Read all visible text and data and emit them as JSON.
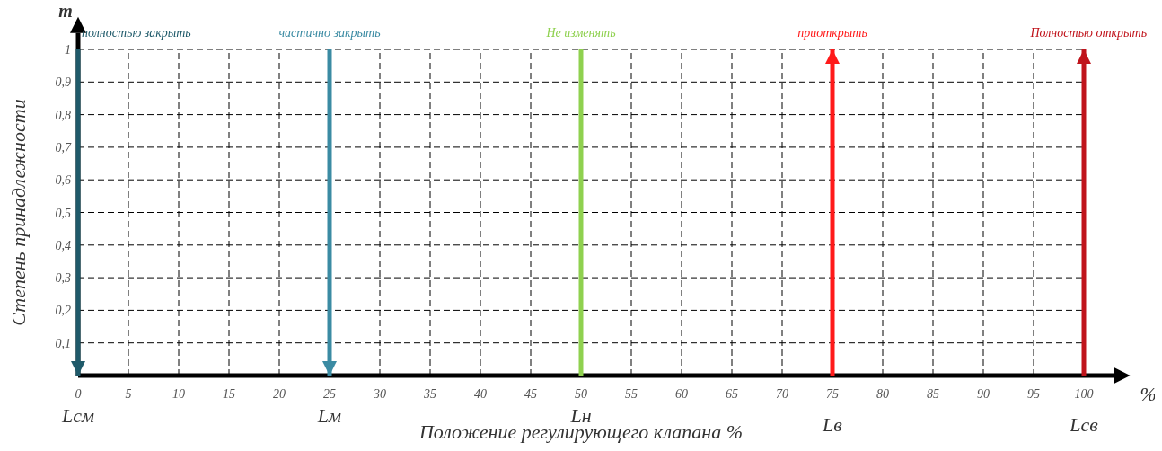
{
  "chart_data": {
    "type": "line",
    "xlabel": "Положение регулирующего клапана %",
    "ylabel": "Степень принадлежности",
    "xlim": [
      0,
      103
    ],
    "ylim": [
      0,
      1.05
    ],
    "xticks": [
      0,
      5,
      10,
      15,
      20,
      25,
      30,
      35,
      40,
      45,
      50,
      55,
      60,
      65,
      70,
      75,
      80,
      85,
      90,
      95,
      100
    ],
    "yticks": [
      {
        "value": 0.1,
        "label": "0,1"
      },
      {
        "value": 0.2,
        "label": "0,2"
      },
      {
        "value": 0.3,
        "label": "0,3"
      },
      {
        "value": 0.4,
        "label": "0,4"
      },
      {
        "value": 0.5,
        "label": "0,5"
      },
      {
        "value": 0.6,
        "label": "0,6"
      },
      {
        "value": 0.7,
        "label": "0,7"
      },
      {
        "value": 0.8,
        "label": "0,8"
      },
      {
        "value": 0.9,
        "label": "0,9"
      },
      1
    ],
    "grid": true,
    "ref_lines": [
      {
        "axis": "x",
        "value": 0,
        "label": "полностью закрыть",
        "color": "#1f5a6a"
      },
      {
        "axis": "x",
        "value": 25,
        "label": "частично закрыть",
        "color": "#3b8ba3"
      },
      {
        "axis": "x",
        "value": 50,
        "label": "Не изменять",
        "color": "#8fd14f"
      },
      {
        "axis": "x",
        "value": 75,
        "label": "приоткрыть",
        "color": "#ff1a1a"
      },
      {
        "axis": "x",
        "value": 100,
        "label": "Полностью открыть",
        "color": "#c0141c"
      }
    ],
    "annotations": [
      "m",
      "%",
      "Lсм",
      "Lм",
      "Lн",
      "Lв",
      "Lсв"
    ]
  }
}
